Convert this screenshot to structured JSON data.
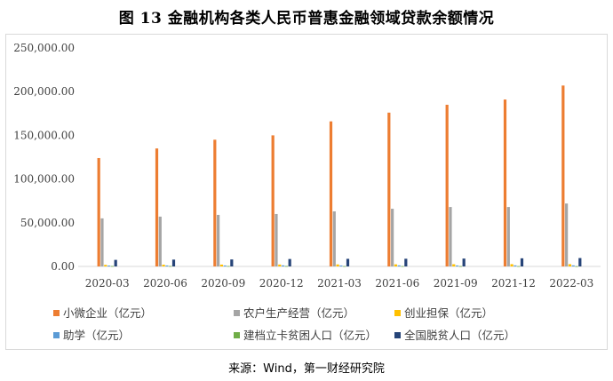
{
  "header": {
    "title": "图 13 金融机构各类人民币普惠金融领域贷款余额情况"
  },
  "footer": {
    "source": "来源：Wind，第一财经研究院"
  },
  "colors": {
    "小微企业": "#ED7D31",
    "农户生产经营": "#A5A5A5",
    "创业担保": "#FFC000",
    "助学": "#5B9BD5",
    "建档立卡贫困人口": "#70AD47",
    "全国脱贫人口": "#264478"
  },
  "chart_data": {
    "type": "bar",
    "title": "图 13 金融机构各类人民币普惠金融领域贷款余额情况",
    "xlabel": "",
    "ylabel": "",
    "ylim": [
      0,
      250000
    ],
    "yticks": [
      "0.00",
      "50,000.00",
      "100,000.00",
      "150,000.00",
      "200,000.00",
      "250,000.00"
    ],
    "ytick_values": [
      0,
      50000,
      100000,
      150000,
      200000,
      250000
    ],
    "grid": false,
    "legend_position": "bottom",
    "categories": [
      "2020-03",
      "2020-06",
      "2020-09",
      "2020-12",
      "2021-03",
      "2021-06",
      "2021-09",
      "2021-12",
      "2022-03"
    ],
    "series": [
      {
        "name": "小微企业（亿元）",
        "values": [
          124000,
          135000,
          145000,
          150000,
          166000,
          176000,
          185000,
          191000,
          207000
        ]
      },
      {
        "name": "农户生产经营（亿元）",
        "values": [
          55000,
          57000,
          59000,
          60000,
          63000,
          66000,
          68000,
          68000,
          72000
        ]
      },
      {
        "name": "创业担保（亿元）",
        "values": [
          1800,
          2000,
          2100,
          2200,
          2300,
          2400,
          2500,
          2600,
          2600
        ]
      },
      {
        "name": "助学（亿元）",
        "values": [
          1000,
          1100,
          1100,
          1200,
          1100,
          1200,
          1100,
          1200,
          1200
        ]
      },
      {
        "name": "建档立卡贫困人口（亿元）",
        "values": [
          500,
          500,
          500,
          500,
          400,
          400,
          400,
          400,
          300
        ]
      },
      {
        "name": "全国脱贫人口（亿元）",
        "values": [
          7500,
          7800,
          8000,
          8500,
          8700,
          8800,
          9000,
          9300,
          9600
        ]
      }
    ]
  }
}
